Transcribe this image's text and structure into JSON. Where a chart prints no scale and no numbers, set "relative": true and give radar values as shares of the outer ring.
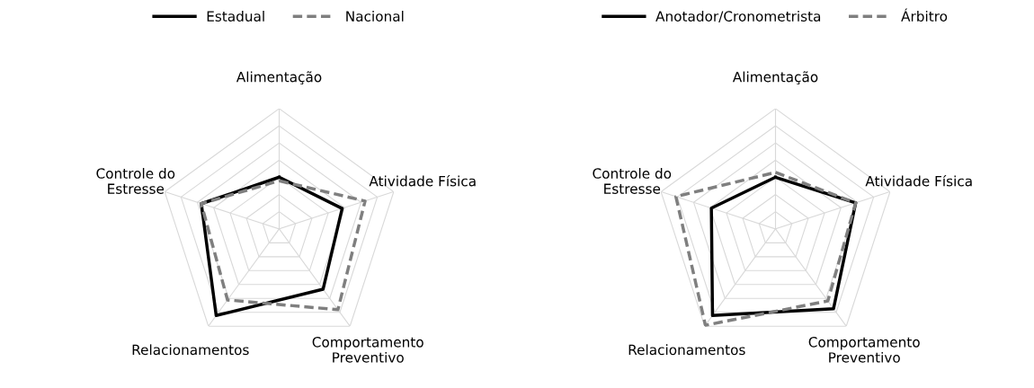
{
  "chart_data": [
    {
      "type": "radar",
      "relative": true,
      "grid": true,
      "legend": "top",
      "categories": [
        "Alimentação",
        "Atividade Física",
        "Comportamento\nPreventivo",
        "Relacionamentos",
        "Controle do\nEstresse"
      ],
      "series": [
        {
          "name": "Estadual",
          "color": "#000000",
          "line_style": "solid",
          "values": [
            0.43,
            0.55,
            0.62,
            0.89,
            0.68
          ]
        },
        {
          "name": "Nacional",
          "color": "#7f7f7f",
          "line_style": "dashed",
          "values": [
            0.4,
            0.75,
            0.83,
            0.73,
            0.68
          ]
        }
      ]
    },
    {
      "type": "radar",
      "relative": true,
      "grid": true,
      "legend": "top",
      "categories": [
        "Alimentação",
        "Atividade Física",
        "Comportamento\nPreventivo",
        "Relacionamentos",
        "Controle do\nEstresse"
      ],
      "series": [
        {
          "name": "Anotador/Cronometrista",
          "color": "#000000",
          "line_style": "solid",
          "values": [
            0.43,
            0.7,
            0.82,
            0.89,
            0.56
          ]
        },
        {
          "name": "Árbitro",
          "color": "#7f7f7f",
          "line_style": "dashed",
          "values": [
            0.47,
            0.7,
            0.74,
            0.99,
            0.87
          ]
        }
      ]
    }
  ]
}
